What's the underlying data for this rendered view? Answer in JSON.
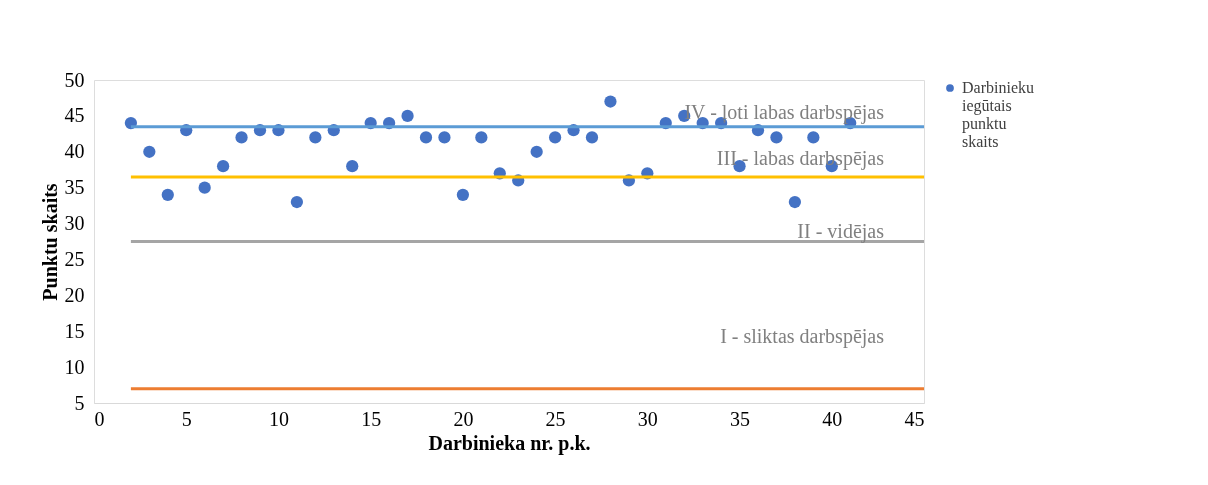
{
  "chart_data": {
    "type": "scatter",
    "xlabel": "Darbinieka nr. p.k.",
    "ylabel": "Punktu skaits",
    "xlim": [
      0,
      45
    ],
    "xticks": [
      0,
      5,
      10,
      15,
      20,
      25,
      30,
      35,
      40,
      45
    ],
    "ylim": [
      5,
      50
    ],
    "yticks": [
      5,
      10,
      15,
      20,
      25,
      30,
      35,
      40,
      45,
      50
    ],
    "grid": false,
    "legend": "right",
    "series": [
      {
        "name": "Darbinieku iegūtais punktu skaits",
        "color": "#4472c4",
        "marker": "circle",
        "x": [
          2,
          3,
          4,
          5,
          6,
          7,
          8,
          9,
          10,
          11,
          12,
          13,
          14,
          15,
          16,
          17,
          18,
          19,
          20,
          21,
          22,
          23,
          24,
          25,
          26,
          27,
          28,
          29,
          30,
          31,
          32,
          33,
          34,
          35,
          36,
          37,
          38,
          39,
          40,
          41
        ],
        "values": [
          44,
          40,
          34,
          43,
          35,
          38,
          42,
          43,
          43,
          33,
          42,
          43,
          38,
          44,
          44,
          45,
          42,
          42,
          34,
          42,
          37,
          36,
          40,
          42,
          43,
          42,
          47,
          36,
          37,
          44,
          45,
          44,
          44,
          38,
          43,
          42,
          33,
          42,
          38,
          44
        ]
      },
      {
        "color": "#5b9bd5",
        "type": "line",
        "marker": "none",
        "x": [
          2,
          45
        ],
        "values": [
          43.5,
          43.5
        ]
      },
      {
        "color": "#ffc000",
        "type": "line",
        "marker": "none",
        "x": [
          2,
          45
        ],
        "values": [
          36.5,
          36.5
        ]
      },
      {
        "color": "#a5a5a5",
        "type": "line",
        "marker": "none",
        "x": [
          2,
          45
        ],
        "values": [
          27.5,
          27.5
        ]
      },
      {
        "color": "#ed7d31",
        "type": "line",
        "marker": "none",
        "x": [
          2,
          45
        ],
        "values": [
          7,
          7
        ]
      }
    ],
    "annotations": [
      "IV - ļoti labas darbspējas",
      "III - labas darbspējas",
      "II - vidējas",
      "I - sliktas darbspējas"
    ]
  }
}
